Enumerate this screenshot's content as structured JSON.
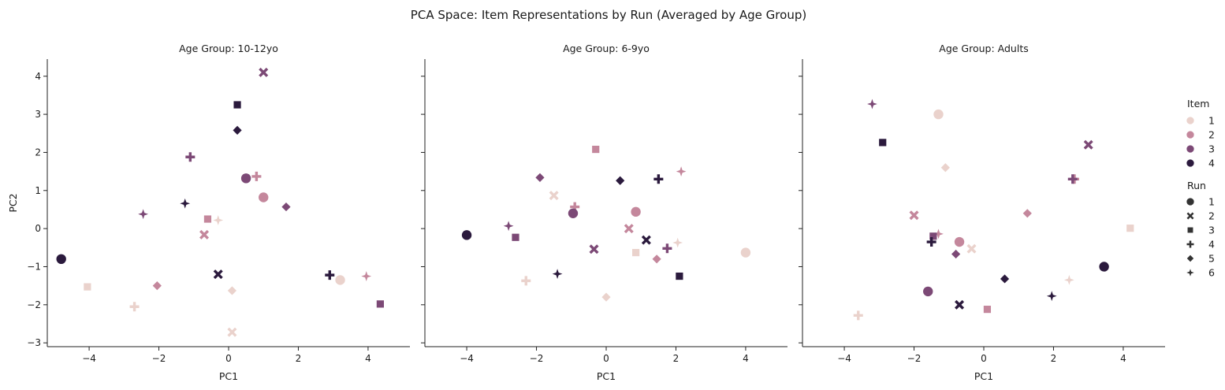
{
  "chart_data": {
    "type": "scatter",
    "title": "PCA Space: Item Representations by Run (Averaged by Age Group)",
    "xlabel": "PC1",
    "ylabel": "PC2",
    "xlim": [
      -5.2,
      5.2
    ],
    "ylim": [
      -3.1,
      4.45
    ],
    "xticks": [
      -4,
      -2,
      0,
      2,
      4
    ],
    "yticks": [
      -3,
      -2,
      -1,
      0,
      1,
      2,
      3,
      4
    ],
    "xtick_labels": [
      "−4",
      "−2",
      "0",
      "2",
      "4"
    ],
    "ytick_labels": [
      "−3",
      "−2",
      "−1",
      "0",
      "1",
      "2",
      "3",
      "4"
    ],
    "hue_title": "Item",
    "hue_levels": [
      "1",
      "2",
      "3",
      "4"
    ],
    "hue_colors": [
      "#ead2cc",
      "#c4879c",
      "#7c4976",
      "#2b1a3d"
    ],
    "style_title": "Run",
    "style_levels": [
      "1",
      "2",
      "3",
      "4",
      "5",
      "6"
    ],
    "style_markers": [
      "circle",
      "x",
      "square",
      "plus",
      "diamond",
      "star4"
    ],
    "legend_position": "right",
    "panels": [
      {
        "title": "Age Group: 10-12yo",
        "points": [
          {
            "item": 1,
            "run": 1,
            "x": 3.2,
            "y": -1.35
          },
          {
            "item": 1,
            "run": 2,
            "x": 0.1,
            "y": -2.72
          },
          {
            "item": 1,
            "run": 3,
            "x": -4.05,
            "y": -1.53
          },
          {
            "item": 1,
            "run": 4,
            "x": -2.7,
            "y": -2.05
          },
          {
            "item": 1,
            "run": 5,
            "x": 0.1,
            "y": -1.63
          },
          {
            "item": 1,
            "run": 6,
            "x": -0.3,
            "y": 0.22
          },
          {
            "item": 2,
            "run": 1,
            "x": 1.0,
            "y": 0.82
          },
          {
            "item": 2,
            "run": 2,
            "x": -0.7,
            "y": -0.16
          },
          {
            "item": 2,
            "run": 3,
            "x": -0.6,
            "y": 0.25
          },
          {
            "item": 2,
            "run": 4,
            "x": 0.8,
            "y": 1.37
          },
          {
            "item": 2,
            "run": 5,
            "x": -2.05,
            "y": -1.5
          },
          {
            "item": 2,
            "run": 6,
            "x": 3.95,
            "y": -1.25
          },
          {
            "item": 3,
            "run": 1,
            "x": 0.5,
            "y": 1.32
          },
          {
            "item": 3,
            "run": 2,
            "x": 1.0,
            "y": 4.1
          },
          {
            "item": 3,
            "run": 3,
            "x": 4.35,
            "y": -1.98
          },
          {
            "item": 3,
            "run": 4,
            "x": -1.1,
            "y": 1.88
          },
          {
            "item": 3,
            "run": 5,
            "x": 1.65,
            "y": 0.57
          },
          {
            "item": 3,
            "run": 6,
            "x": -2.45,
            "y": 0.38
          },
          {
            "item": 4,
            "run": 1,
            "x": -4.8,
            "y": -0.8
          },
          {
            "item": 4,
            "run": 2,
            "x": -0.3,
            "y": -1.2
          },
          {
            "item": 4,
            "run": 3,
            "x": 0.25,
            "y": 3.25
          },
          {
            "item": 4,
            "run": 4,
            "x": 2.9,
            "y": -1.22
          },
          {
            "item": 4,
            "run": 5,
            "x": 0.25,
            "y": 2.58
          },
          {
            "item": 4,
            "run": 6,
            "x": -1.25,
            "y": 0.66
          }
        ]
      },
      {
        "title": "Age Group: 6-9yo",
        "points": [
          {
            "item": 1,
            "run": 1,
            "x": 4.0,
            "y": -0.63
          },
          {
            "item": 1,
            "run": 2,
            "x": -1.5,
            "y": 0.87
          },
          {
            "item": 1,
            "run": 3,
            "x": 0.85,
            "y": -0.63
          },
          {
            "item": 1,
            "run": 4,
            "x": -2.3,
            "y": -1.37
          },
          {
            "item": 1,
            "run": 5,
            "x": 0.0,
            "y": -1.8
          },
          {
            "item": 1,
            "run": 6,
            "x": 2.05,
            "y": -0.37
          },
          {
            "item": 2,
            "run": 1,
            "x": 0.85,
            "y": 0.44
          },
          {
            "item": 2,
            "run": 2,
            "x": 0.65,
            "y": 0.0
          },
          {
            "item": 2,
            "run": 3,
            "x": -0.3,
            "y": 2.08
          },
          {
            "item": 2,
            "run": 4,
            "x": -0.9,
            "y": 0.57
          },
          {
            "item": 2,
            "run": 5,
            "x": 1.45,
            "y": -0.8
          },
          {
            "item": 2,
            "run": 6,
            "x": 2.15,
            "y": 1.5
          },
          {
            "item": 3,
            "run": 1,
            "x": -0.95,
            "y": 0.4
          },
          {
            "item": 3,
            "run": 2,
            "x": -0.35,
            "y": -0.54
          },
          {
            "item": 3,
            "run": 3,
            "x": -2.6,
            "y": -0.23
          },
          {
            "item": 3,
            "run": 4,
            "x": 1.75,
            "y": -0.52
          },
          {
            "item": 3,
            "run": 5,
            "x": -1.9,
            "y": 1.34
          },
          {
            "item": 3,
            "run": 6,
            "x": -2.8,
            "y": 0.07
          },
          {
            "item": 4,
            "run": 1,
            "x": -4.0,
            "y": -0.17
          },
          {
            "item": 4,
            "run": 2,
            "x": 1.15,
            "y": -0.3
          },
          {
            "item": 4,
            "run": 3,
            "x": 2.1,
            "y": -1.25
          },
          {
            "item": 4,
            "run": 4,
            "x": 1.5,
            "y": 1.3
          },
          {
            "item": 4,
            "run": 5,
            "x": 0.4,
            "y": 1.26
          },
          {
            "item": 4,
            "run": 6,
            "x": -1.4,
            "y": -1.19
          }
        ]
      },
      {
        "title": "Age Group: Adults",
        "points": [
          {
            "item": 1,
            "run": 1,
            "x": -1.3,
            "y": 3.0
          },
          {
            "item": 1,
            "run": 2,
            "x": -0.35,
            "y": -0.53
          },
          {
            "item": 1,
            "run": 3,
            "x": 4.2,
            "y": 0.01
          },
          {
            "item": 1,
            "run": 4,
            "x": -3.6,
            "y": -2.28
          },
          {
            "item": 1,
            "run": 5,
            "x": -1.1,
            "y": 1.6
          },
          {
            "item": 1,
            "run": 6,
            "x": 2.45,
            "y": -1.35
          },
          {
            "item": 2,
            "run": 1,
            "x": -0.7,
            "y": -0.35
          },
          {
            "item": 2,
            "run": 2,
            "x": -2.0,
            "y": 0.35
          },
          {
            "item": 2,
            "run": 3,
            "x": 0.1,
            "y": -2.12
          },
          {
            "item": 2,
            "run": 4,
            "x": 2.6,
            "y": 1.3
          },
          {
            "item": 2,
            "run": 5,
            "x": 1.25,
            "y": 0.4
          },
          {
            "item": 2,
            "run": 6,
            "x": -1.3,
            "y": -0.14
          },
          {
            "item": 3,
            "run": 1,
            "x": -1.6,
            "y": -1.65
          },
          {
            "item": 3,
            "run": 2,
            "x": 3.0,
            "y": 2.2
          },
          {
            "item": 3,
            "run": 3,
            "x": -1.45,
            "y": -0.2
          },
          {
            "item": 3,
            "run": 4,
            "x": 2.55,
            "y": 1.3
          },
          {
            "item": 3,
            "run": 5,
            "x": -0.8,
            "y": -0.67
          },
          {
            "item": 3,
            "run": 6,
            "x": -3.2,
            "y": 3.27
          },
          {
            "item": 4,
            "run": 1,
            "x": 3.45,
            "y": -1.0
          },
          {
            "item": 4,
            "run": 2,
            "x": -0.7,
            "y": -2.0
          },
          {
            "item": 4,
            "run": 3,
            "x": -2.9,
            "y": 2.26
          },
          {
            "item": 4,
            "run": 4,
            "x": -1.5,
            "y": -0.35
          },
          {
            "item": 4,
            "run": 5,
            "x": 0.6,
            "y": -1.32
          },
          {
            "item": 4,
            "run": 6,
            "x": 1.95,
            "y": -1.77
          }
        ]
      }
    ]
  }
}
